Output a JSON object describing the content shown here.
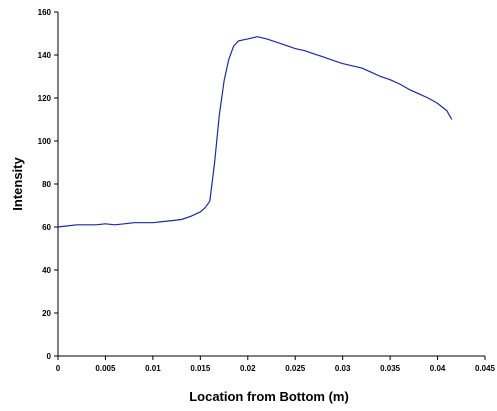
{
  "chart_data": {
    "type": "line",
    "title": "",
    "xlabel": "Location from Bottom (m)",
    "ylabel": "Intensity",
    "xlim": [
      0,
      0.045
    ],
    "ylim": [
      0,
      160
    ],
    "x_ticks": [
      0,
      0.005,
      0.01,
      0.015,
      0.02,
      0.025,
      0.03,
      0.035,
      0.04,
      0.045
    ],
    "x_tick_labels": [
      "0",
      "0.005",
      "0.01",
      "0.015",
      "0.02",
      "0.025",
      "0.03",
      "0.035",
      "0.04",
      "0.045"
    ],
    "y_ticks": [
      0,
      20,
      40,
      60,
      80,
      100,
      120,
      140,
      160
    ],
    "y_tick_labels": [
      "0",
      "20",
      "40",
      "60",
      "80",
      "100",
      "120",
      "140",
      "160"
    ],
    "grid": false,
    "legend": "none",
    "line_color": "#1f2a9a",
    "series": [
      {
        "x": [
          0,
          0.001,
          0.002,
          0.003,
          0.004,
          0.005,
          0.006,
          0.007,
          0.008,
          0.009,
          0.01,
          0.011,
          0.012,
          0.013,
          0.014,
          0.015,
          0.0155,
          0.016,
          0.0165,
          0.017,
          0.0175,
          0.018,
          0.0185,
          0.019,
          0.0195,
          0.02,
          0.0205,
          0.021,
          0.0215,
          0.022,
          0.023,
          0.024,
          0.025,
          0.026,
          0.027,
          0.028,
          0.029,
          0.03,
          0.031,
          0.032,
          0.033,
          0.034,
          0.035,
          0.036,
          0.037,
          0.038,
          0.039,
          0.04,
          0.041,
          0.0415
        ],
        "y": [
          60,
          60.5,
          61,
          61,
          61,
          61.5,
          61,
          61.5,
          62,
          62,
          62,
          62.5,
          63,
          63.5,
          65,
          67,
          69,
          72,
          90,
          112,
          128,
          138,
          144,
          146.5,
          147,
          147.5,
          148,
          148.5,
          148,
          147.5,
          146,
          144.5,
          143,
          142,
          140.5,
          139,
          137.5,
          136,
          135,
          134,
          132,
          130,
          128.5,
          126.5,
          124,
          122,
          120,
          117.5,
          114,
          110
        ]
      }
    ]
  }
}
